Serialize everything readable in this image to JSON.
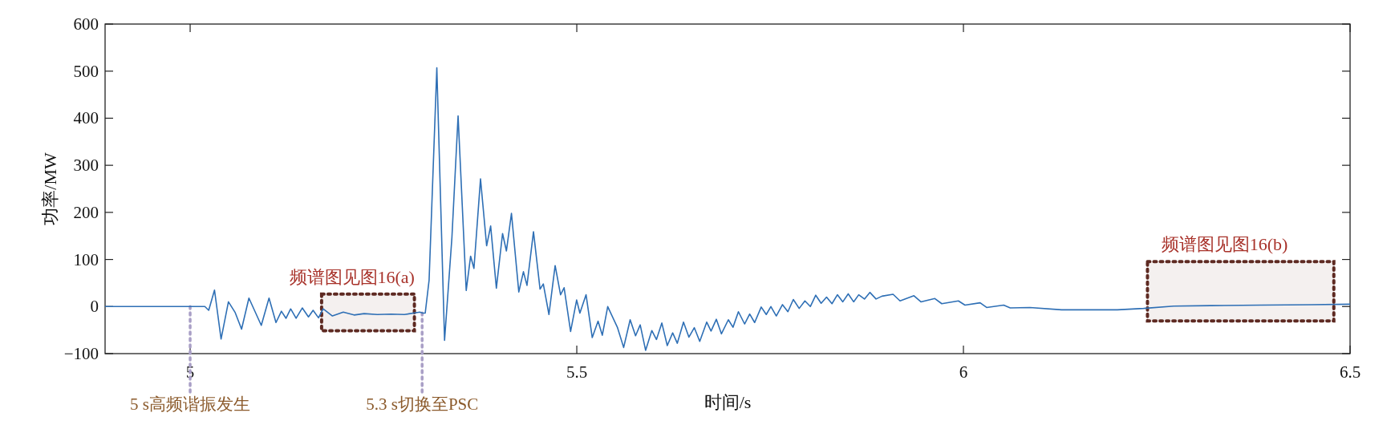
{
  "chart_data": {
    "type": "line",
    "xlabel": "时间/s",
    "ylabel": "功率/MW",
    "xlim": [
      4.89,
      6.5
    ],
    "ylim": [
      -100,
      600
    ],
    "xticks": [
      5,
      5.5,
      6,
      6.5
    ],
    "yticks": [
      -100,
      0,
      100,
      200,
      300,
      400,
      500,
      600
    ],
    "grid": false,
    "line_style": "solid",
    "series": [
      {
        "color": "#2e6fb5",
        "x": [
          4.89,
          5.019,
          5.024,
          5.0315,
          5.04,
          5.0495,
          5.058,
          5.0665,
          5.076,
          5.092,
          5.102,
          5.111,
          5.118,
          5.124,
          5.13,
          5.137,
          5.145,
          5.153,
          5.159,
          5.166,
          5.172,
          5.184,
          5.198,
          5.212,
          5.225,
          5.242,
          5.26,
          5.277,
          5.297,
          5.301,
          5.304,
          5.309,
          5.319,
          5.329,
          5.3385,
          5.3465,
          5.357,
          5.3627,
          5.367,
          5.3755,
          5.3834,
          5.3886,
          5.396,
          5.404,
          5.409,
          5.4155,
          5.425,
          5.431,
          5.4356,
          5.444,
          5.4525,
          5.4567,
          5.464,
          5.472,
          5.479,
          5.4836,
          5.492,
          5.4998,
          5.504,
          5.512,
          5.52,
          5.5275,
          5.533,
          5.54,
          5.5527,
          5.5606,
          5.569,
          5.576,
          5.582,
          5.589,
          5.597,
          5.603,
          5.61,
          5.617,
          5.624,
          5.63,
          5.638,
          5.645,
          5.652,
          5.659,
          5.668,
          5.6736,
          5.6805,
          5.687,
          5.696,
          5.702,
          5.709,
          5.717,
          5.7236,
          5.73,
          5.7385,
          5.745,
          5.751,
          5.758,
          5.766,
          5.773,
          5.78,
          5.7876,
          5.795,
          5.802,
          5.809,
          5.816,
          5.823,
          5.83,
          5.837,
          5.844,
          5.851,
          5.858,
          5.8646,
          5.872,
          5.879,
          5.887,
          5.8946,
          5.909,
          5.918,
          5.936,
          5.945,
          5.963,
          5.972,
          5.9935,
          6.002,
          6.0216,
          6.03,
          6.052,
          6.0605,
          6.086,
          6.127,
          6.162,
          6.199,
          6.233,
          6.272,
          6.32,
          6.385,
          6.45,
          6.5
        ],
        "values": [
          0,
          0,
          -8,
          35,
          -69,
          10,
          -12,
          -48,
          18,
          -40,
          18,
          -34,
          -10,
          -25,
          -5,
          -25,
          -3,
          -22,
          -8,
          -24,
          -5,
          -20,
          -12,
          -18,
          -15,
          -17,
          -16,
          -17,
          -12,
          -14,
          -14,
          56,
          507,
          -72,
          146,
          405,
          34,
          107,
          81,
          271,
          129,
          171,
          39,
          155,
          118,
          198,
          31,
          74,
          45,
          159,
          37,
          48,
          -17,
          87,
          25,
          40,
          -53,
          14,
          -14,
          25,
          -66,
          -31,
          -61,
          0,
          -45,
          -87,
          -28,
          -62,
          -39,
          -93,
          -51,
          -70,
          -35,
          -83,
          -56,
          -78,
          -33,
          -65,
          -45,
          -74,
          -33,
          -52,
          -27,
          -58,
          -28,
          -44,
          -11,
          -37,
          -16,
          -34,
          -1,
          -17,
          0,
          -20,
          4,
          -11,
          15,
          -4,
          12,
          0,
          24,
          7,
          20,
          6,
          25,
          10,
          27,
          10,
          25,
          16,
          30,
          16,
          22,
          26,
          12,
          23,
          10,
          17,
          6,
          12,
          3,
          8,
          -2,
          3,
          -3,
          -2,
          -7,
          -7,
          -7,
          -4,
          1,
          2,
          3,
          4,
          5
        ]
      }
    ],
    "ref_lines": [
      {
        "axis": "x",
        "value": 5,
        "label": "5 s高频谐振发生",
        "color": "#a99fc6",
        "line_style": "dotted"
      },
      {
        "axis": "x",
        "value": 5.3,
        "label": "5.3 s切换至PSC",
        "color": "#a99fc6",
        "line_style": "dotted"
      }
    ],
    "bands": [
      {
        "axis": "x",
        "from": 5.17,
        "to": 5.29,
        "label": "频谱图见图16(a)",
        "color": "#5e2a22"
      },
      {
        "axis": "x",
        "from": 6.238,
        "to": 6.479,
        "label": "频谱图见图16(b)",
        "color": "#5e2a22"
      }
    ]
  }
}
